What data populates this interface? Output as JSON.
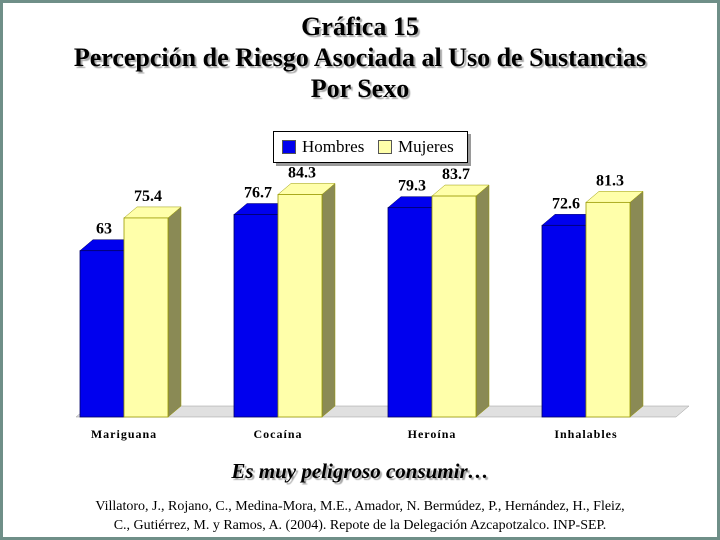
{
  "title": {
    "line1": "Gráfica 15",
    "line2": "Percepción de Riesgo Asociada al Uso de Sustancias",
    "line3": "Por Sexo"
  },
  "colors": {
    "hombres": "#0000ee",
    "mujeres": "#ffffaa",
    "side": "#8a8a55",
    "floor": "#e0e0e0"
  },
  "chart_data": {
    "type": "bar",
    "categories": [
      "Mariguana",
      "Cocaína",
      "Heroína",
      "Inhalables"
    ],
    "series": [
      {
        "name": "Hombres",
        "values": [
          63,
          76.7,
          79.3,
          72.6
        ]
      },
      {
        "name": "Mujeres",
        "values": [
          75.4,
          84.3,
          83.7,
          81.3
        ]
      }
    ],
    "value_labels": {
      "Hombres": [
        "63",
        "76.7",
        "79.3",
        "72.6"
      ],
      "Mujeres": [
        "75.4",
        "84.3",
        "83.7",
        "81.3"
      ]
    },
    "ylim": [
      0,
      100
    ],
    "grid": false,
    "legend_position": "top-center"
  },
  "caption": "Es muy peligroso consumir…",
  "source": {
    "line1": "Villatoro, J., Rojano, C., Medina-Mora, M.E., Amador, N. Bermúdez, P., Hernández, H., Fleiz,",
    "line2": "C., Gutiérrez, M. y Ramos, A. (2004). Repote de la Delegación Azcapotzalco. INP-SEP."
  }
}
